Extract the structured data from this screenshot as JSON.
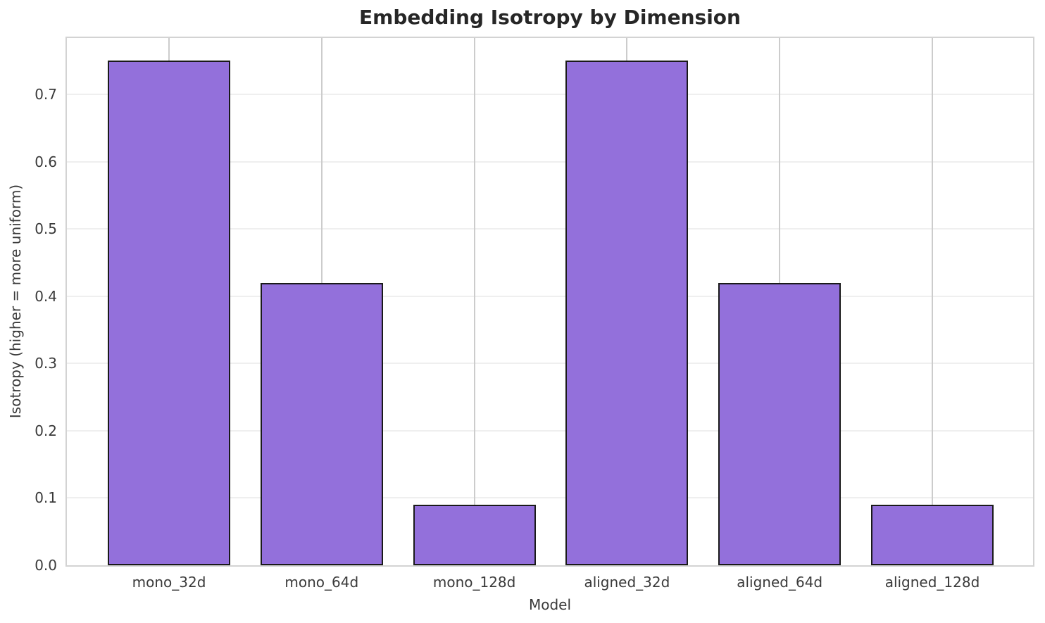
{
  "chart_data": {
    "type": "bar",
    "title": "Embedding Isotropy by Dimension",
    "xlabel": "Model",
    "ylabel": "Isotropy (higher = more uniform)",
    "categories": [
      "mono_32d",
      "mono_64d",
      "mono_128d",
      "aligned_32d",
      "aligned_64d",
      "aligned_128d"
    ],
    "values": [
      0.75,
      0.42,
      0.09,
      0.75,
      0.42,
      0.09
    ],
    "yticks": [
      0.0,
      0.1,
      0.2,
      0.3,
      0.4,
      0.5,
      0.6,
      0.7
    ],
    "ylim": [
      0,
      0.784
    ],
    "grid": "both",
    "legend": null,
    "colors": {
      "bar_fill": "#9370DB",
      "bar_edge": "#1a1a1a",
      "hgrid": "#efefef",
      "vgrid": "#cccccc",
      "spine": "#d3d3d3",
      "title_text": "#262626",
      "tick_text": "#3a3a3a"
    }
  }
}
